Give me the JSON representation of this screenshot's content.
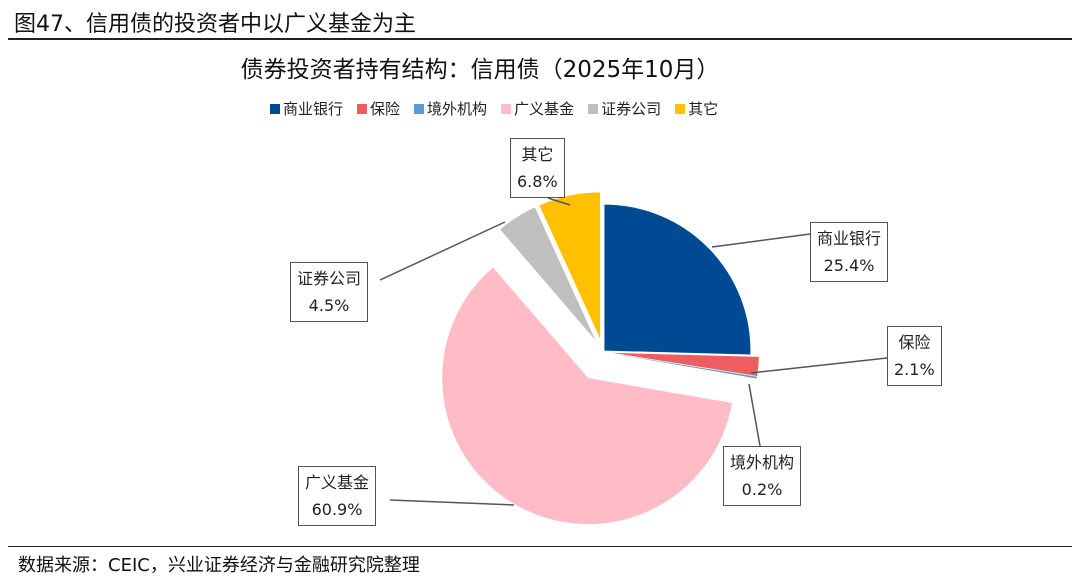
{
  "figure_title": "图47、信用债的投资者中以广义基金为主",
  "source": "数据来源：CEIC，兴业证券经济与金融研究院整理",
  "chart_data": {
    "type": "pie",
    "title": "债券投资者持有结构：信用债（2025年10月）",
    "legend_position": "top",
    "start_angle": "12 o'clock, clockwise",
    "slices": [
      {
        "name": "商业银行",
        "value": 25.4,
        "label": "25.4%",
        "color": "#004A94"
      },
      {
        "name": "保险",
        "value": 2.1,
        "label": "2.1%",
        "color": "#EE5E61"
      },
      {
        "name": "境外机构",
        "value": 0.2,
        "label": "0.2%",
        "color": "#5B9BD5"
      },
      {
        "name": "广义基金",
        "value": 60.9,
        "label": "60.9%",
        "color": "#FFBBC6"
      },
      {
        "name": "证券公司",
        "value": 4.5,
        "label": "4.5%",
        "color": "#BFBFBF"
      },
      {
        "name": "其它",
        "value": 6.8,
        "label": "6.8%",
        "color": "#FFC000"
      }
    ]
  }
}
